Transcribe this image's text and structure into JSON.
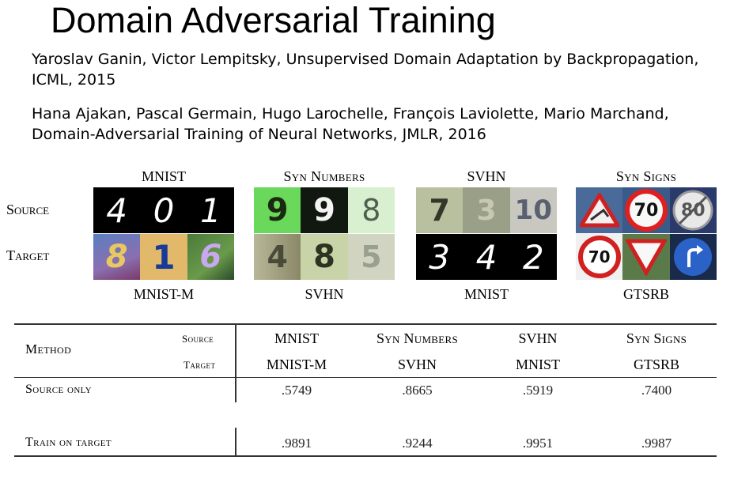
{
  "slide": {
    "title": "Domain Adversarial Training",
    "citations": [
      {
        "line1": "Yaroslav Ganin, Victor Lempitsky, Unsupervised Domain Adaptation by Backpropagation,",
        "line2": "ICML, 2015"
      },
      {
        "line1": "Hana Ajakan, Pascal Germain, Hugo Larochelle, François Laviolette, Mario Marchand,",
        "line2": "Domain-Adversarial Training of Neural Networks, JMLR, 2016"
      }
    ]
  },
  "figure": {
    "row_labels": {
      "source": "Source",
      "target": "Target"
    },
    "datasets": [
      {
        "source_name": "MNIST",
        "target_name": "MNIST-M",
        "source_digits": [
          "4",
          "0",
          "1"
        ],
        "target_digits": [
          "8",
          "1",
          "6"
        ]
      },
      {
        "source_name": "Syn Numbers",
        "target_name": "SVHN",
        "source_digits": [
          "9",
          "9",
          "8"
        ],
        "target_digits": [
          "4",
          "8",
          "5"
        ]
      },
      {
        "source_name": "SVHN",
        "target_name": "MNIST",
        "source_digits": [
          "7",
          "3",
          "10"
        ],
        "target_digits": [
          "3",
          "4",
          "2"
        ]
      },
      {
        "source_name": "Syn Signs",
        "target_name": "GTSRB",
        "source_digits": [
          "",
          "70",
          "80"
        ],
        "target_digits": [
          "70",
          "",
          ""
        ]
      }
    ]
  },
  "table": {
    "method_header": "Method",
    "source_header": "Source",
    "target_header": "Target",
    "columns": [
      {
        "source": "MNIST",
        "target": "MNIST-M"
      },
      {
        "source": "Syn Numbers",
        "target": "SVHN"
      },
      {
        "source": "SVHN",
        "target": "MNIST"
      },
      {
        "source": "Syn Signs",
        "target": "GTSRB"
      }
    ],
    "rows": [
      {
        "method": "Source only",
        "values": [
          ".5749",
          ".8665",
          ".5919",
          ".7400"
        ]
      },
      {
        "method": "Train on target",
        "values": [
          ".9891",
          ".9244",
          ".9951",
          ".9987"
        ]
      }
    ]
  }
}
